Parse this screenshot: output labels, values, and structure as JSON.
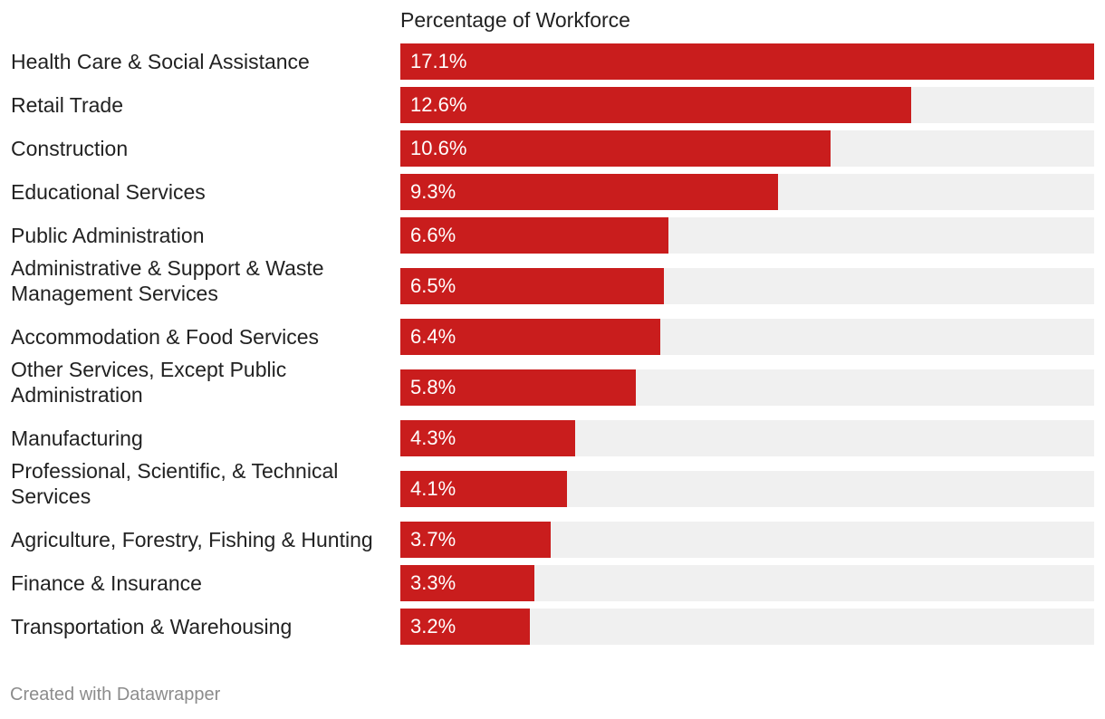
{
  "chart_data": {
    "type": "bar",
    "orientation": "horizontal",
    "title": "",
    "column_header": "Percentage of Workforce",
    "xlabel": "",
    "ylabel": "",
    "xlim": [
      0,
      17.1
    ],
    "grid": false,
    "value_suffix": "%",
    "categories": [
      "Health Care & Social Assistance",
      "Retail Trade",
      "Construction",
      "Educational Services",
      "Public Administration",
      "Administrative & Support & Waste Management Services",
      "Accommodation & Food Services",
      "Other Services, Except Public Administration",
      "Manufacturing",
      "Professional, Scientific, & Technical Services",
      "Agriculture, Forestry, Fishing & Hunting",
      "Finance & Insurance",
      "Transportation & Warehousing"
    ],
    "values": [
      17.1,
      12.6,
      10.6,
      9.3,
      6.6,
      6.5,
      6.4,
      5.8,
      4.3,
      4.1,
      3.7,
      3.3,
      3.2
    ],
    "value_labels": [
      "17.1%",
      "12.6%",
      "10.6%",
      "9.3%",
      "6.6%",
      "6.5%",
      "6.4%",
      "5.8%",
      "4.3%",
      "4.1%",
      "3.7%",
      "3.3%",
      "3.2%"
    ],
    "bar_color": "#c91d1d",
    "track_color": "#f0f0f0"
  },
  "footer": {
    "credit": "Created with Datawrapper"
  }
}
